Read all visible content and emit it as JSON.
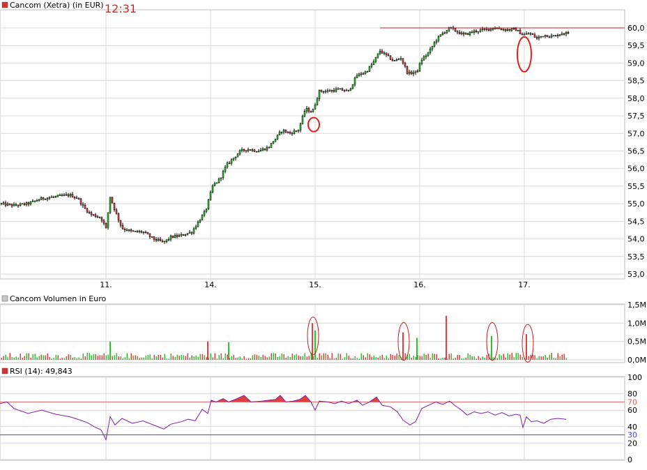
{
  "colors": {
    "price_marker": "#d83030",
    "volume_marker": "#c8c8c8",
    "rsi_marker": "#d83030",
    "up": "#30c030",
    "down": "#e04040",
    "rsi_line": "#8020a0",
    "grid": "#d9d9d9",
    "upper_band": "#e06060",
    "lower_band": "#4040e0",
    "annotation": "#e02020"
  },
  "price_panel": {
    "title": "Cancom (Xetra) (in EUR)",
    "time": "12:31"
  },
  "volume_panel": {
    "title": "Cancom Volumen in Euro"
  },
  "rsi_panel": {
    "title": "RSI (14): 49,843"
  },
  "chart_data": [
    {
      "type": "candlestick",
      "title": "Cancom (Xetra) (in EUR)",
      "ylim": [
        52.8,
        60.5
      ],
      "y_ticks": [
        "53,0",
        "53,5",
        "54,0",
        "54,5",
        "55,0",
        "55,5",
        "56,0",
        "56,5",
        "57,0",
        "57,5",
        "58,0",
        "58,5",
        "59,0",
        "59,5",
        "60,0"
      ],
      "x_ticks": [
        "11.",
        "14.",
        "15.",
        "16.",
        "17."
      ],
      "grid": true,
      "reference_line": 60.0,
      "path_points": [
        [
          0,
          55.0
        ],
        [
          20,
          54.95
        ],
        [
          40,
          55.0
        ],
        [
          60,
          55.15
        ],
        [
          80,
          55.2
        ],
        [
          100,
          55.25
        ],
        [
          112,
          55.15
        ],
        [
          120,
          54.9
        ],
        [
          130,
          54.7
        ],
        [
          145,
          54.6
        ],
        [
          152,
          54.3
        ],
        [
          158,
          55.2
        ],
        [
          165,
          54.8
        ],
        [
          175,
          54.3
        ],
        [
          190,
          54.2
        ],
        [
          205,
          54.2
        ],
        [
          220,
          54.0
        ],
        [
          235,
          53.9
        ],
        [
          245,
          54.05
        ],
        [
          260,
          54.1
        ],
        [
          275,
          54.2
        ],
        [
          285,
          54.5
        ],
        [
          295,
          54.8
        ],
        [
          305,
          55.5
        ],
        [
          315,
          55.7
        ],
        [
          325,
          56.1
        ],
        [
          335,
          56.3
        ],
        [
          345,
          56.5
        ],
        [
          355,
          56.55
        ],
        [
          370,
          56.5
        ],
        [
          385,
          56.6
        ],
        [
          395,
          56.85
        ],
        [
          405,
          57.1
        ],
        [
          415,
          57.0
        ],
        [
          428,
          57.1
        ],
        [
          438,
          57.7
        ],
        [
          448,
          57.6
        ],
        [
          458,
          58.2
        ],
        [
          470,
          58.2
        ],
        [
          485,
          58.25
        ],
        [
          500,
          58.2
        ],
        [
          512,
          58.65
        ],
        [
          525,
          58.75
        ],
        [
          535,
          59.0
        ],
        [
          545,
          59.35
        ],
        [
          555,
          59.2
        ],
        [
          565,
          59.05
        ],
        [
          575,
          59.15
        ],
        [
          585,
          58.7
        ],
        [
          598,
          58.75
        ],
        [
          605,
          59.1
        ],
        [
          615,
          59.3
        ],
        [
          625,
          59.65
        ],
        [
          635,
          59.85
        ],
        [
          645,
          60.0
        ],
        [
          655,
          59.9
        ],
        [
          665,
          59.8
        ],
        [
          680,
          59.9
        ],
        [
          695,
          59.95
        ],
        [
          710,
          60.0
        ],
        [
          725,
          59.95
        ],
        [
          740,
          59.95
        ],
        [
          750,
          59.8
        ],
        [
          760,
          59.85
        ],
        [
          770,
          59.7
        ],
        [
          780,
          59.8
        ],
        [
          795,
          59.75
        ],
        [
          805,
          59.85
        ],
        [
          815,
          59.85
        ]
      ],
      "annotations": [
        {
          "type": "circle",
          "x": 450,
          "y": 57.25
        },
        {
          "type": "ellipse",
          "x": 752,
          "y": 59.25
        }
      ]
    },
    {
      "type": "bar",
      "title": "Cancom Volumen in Euro",
      "ylim": [
        0,
        1500000
      ],
      "y_ticks": [
        "0,0M",
        "0,5M",
        "1,0M",
        "1,5M"
      ],
      "spikes": [
        {
          "x": 158,
          "value": 500000
        },
        {
          "x": 298,
          "value": 500000
        },
        {
          "x": 328,
          "value": 480000
        },
        {
          "x": 448,
          "value": 1000000
        },
        {
          "x": 452,
          "value": 800000
        },
        {
          "x": 578,
          "value": 750000
        },
        {
          "x": 598,
          "value": 600000
        },
        {
          "x": 640,
          "value": 1200000
        },
        {
          "x": 705,
          "value": 650000
        },
        {
          "x": 755,
          "value": 700000
        }
      ],
      "annotations": [
        {
          "type": "ellipse",
          "x": 449,
          "y": 650000
        },
        {
          "type": "ellipse",
          "x": 579,
          "y": 500000
        },
        {
          "type": "ellipse",
          "x": 706,
          "y": 500000
        },
        {
          "type": "ellipse",
          "x": 757,
          "y": 450000
        }
      ]
    },
    {
      "type": "line",
      "title": "RSI (14): 49,843",
      "ylim": [
        0,
        100
      ],
      "y_ticks": [
        "0",
        "20",
        "30",
        "40",
        "60",
        "70",
        "80",
        "100"
      ],
      "upper_band": 70,
      "lower_band": 30,
      "points": [
        [
          0,
          68
        ],
        [
          10,
          70
        ],
        [
          20,
          62
        ],
        [
          40,
          56
        ],
        [
          60,
          60
        ],
        [
          80,
          55
        ],
        [
          100,
          52
        ],
        [
          115,
          48
        ],
        [
          125,
          45
        ],
        [
          135,
          40
        ],
        [
          145,
          36
        ],
        [
          152,
          24
        ],
        [
          158,
          52
        ],
        [
          165,
          42
        ],
        [
          175,
          50
        ],
        [
          190,
          44
        ],
        [
          205,
          47
        ],
        [
          220,
          42
        ],
        [
          235,
          37
        ],
        [
          245,
          43
        ],
        [
          260,
          46
        ],
        [
          270,
          49
        ],
        [
          280,
          47
        ],
        [
          290,
          61
        ],
        [
          298,
          56
        ],
        [
          303,
          72
        ],
        [
          310,
          70
        ],
        [
          320,
          74
        ],
        [
          328,
          70
        ],
        [
          340,
          74
        ],
        [
          350,
          78
        ],
        [
          360,
          70
        ],
        [
          375,
          71
        ],
        [
          385,
          72
        ],
        [
          395,
          73
        ],
        [
          402,
          78
        ],
        [
          410,
          70
        ],
        [
          420,
          71
        ],
        [
          430,
          73
        ],
        [
          438,
          78
        ],
        [
          446,
          70
        ],
        [
          452,
          60
        ],
        [
          458,
          71
        ],
        [
          470,
          70
        ],
        [
          480,
          68
        ],
        [
          490,
          71
        ],
        [
          500,
          68
        ],
        [
          512,
          72
        ],
        [
          520,
          66
        ],
        [
          530,
          70
        ],
        [
          540,
          76
        ],
        [
          548,
          66
        ],
        [
          560,
          64
        ],
        [
          570,
          58
        ],
        [
          578,
          48
        ],
        [
          588,
          42
        ],
        [
          596,
          46
        ],
        [
          605,
          62
        ],
        [
          615,
          66
        ],
        [
          625,
          70
        ],
        [
          635,
          67
        ],
        [
          645,
          71
        ],
        [
          652,
          66
        ],
        [
          662,
          60
        ],
        [
          670,
          54
        ],
        [
          680,
          58
        ],
        [
          690,
          56
        ],
        [
          700,
          58
        ],
        [
          710,
          54
        ],
        [
          720,
          57
        ],
        [
          730,
          53
        ],
        [
          740,
          55
        ],
        [
          746,
          54
        ],
        [
          750,
          39
        ],
        [
          755,
          52
        ],
        [
          762,
          46
        ],
        [
          770,
          47
        ],
        [
          780,
          44
        ],
        [
          790,
          49
        ],
        [
          800,
          50
        ],
        [
          812,
          49
        ]
      ]
    }
  ]
}
